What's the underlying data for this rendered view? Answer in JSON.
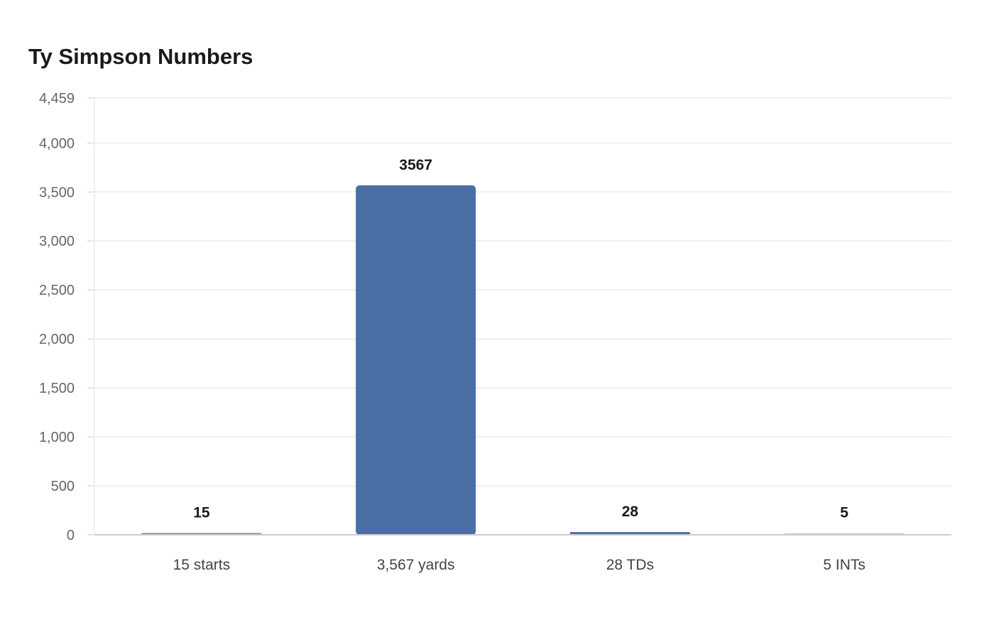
{
  "chart_data": {
    "type": "bar",
    "title": "Ty Simpson Numbers",
    "xlabel": "",
    "ylabel": "",
    "categories": [
      "15 starts",
      "3,567 yards",
      "28 TDs",
      "5 INTs"
    ],
    "values": [
      15,
      3567,
      28,
      5
    ],
    "data_labels": [
      "15",
      "3567",
      "28",
      "5"
    ],
    "bar_colors": [
      "#7f8fa6",
      "#4a6fa5",
      "#4a6fa5",
      "#d0d4da"
    ],
    "ylim": [
      0,
      4459
    ],
    "yticks": [
      0,
      500,
      1000,
      1500,
      2000,
      2500,
      3000,
      3500,
      4000,
      4459
    ],
    "ytick_labels": [
      "0",
      "500",
      "1,000",
      "1,500",
      "2,000",
      "2,500",
      "3,000",
      "3,500",
      "4,000",
      "4,459"
    ],
    "grid": true,
    "legend": "none"
  },
  "colors": {
    "grid": "#ebebeb",
    "axis": "#cccccc"
  }
}
